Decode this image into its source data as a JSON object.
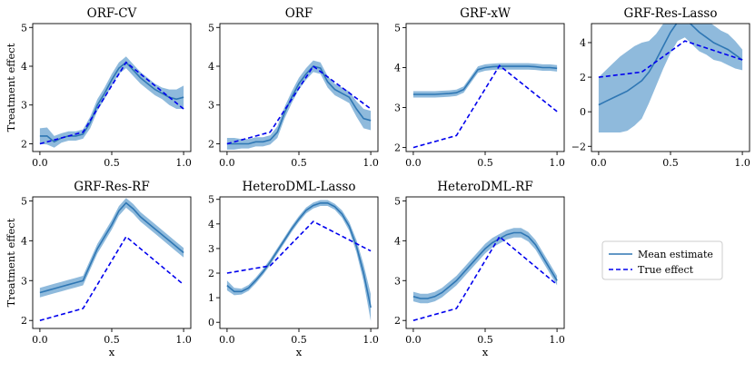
{
  "colors": {
    "band": "#8fbadc",
    "mean": "#2f77b4",
    "truth": "#0000ee",
    "axis": "#000000",
    "legend_border": "#cccccc"
  },
  "legend": {
    "mean_label": "Mean estimate",
    "true_label": "True effect",
    "placement": "lower-right-empty-slot"
  },
  "chart_data": [
    {
      "type": "line",
      "title": "ORF-CV",
      "ylabel": "Treatment effect",
      "xlabel": "",
      "xlim": [
        -0.05,
        1.05
      ],
      "ylim": [
        1.8,
        5.1
      ],
      "xticks": [
        0.0,
        0.5,
        1.0
      ],
      "xtick_labels": [
        "0.0",
        "0.5",
        "1.0"
      ],
      "yticks": [
        2,
        3,
        4,
        5
      ],
      "ytick_labels": [
        "2",
        "3",
        "4",
        "5"
      ],
      "true_effect": {
        "x": [
          0,
          0.3,
          0.6,
          1.0
        ],
        "y": [
          2.0,
          2.3,
          4.1,
          2.9
        ]
      },
      "mean_estimate": {
        "x": [
          0,
          0.05,
          0.1,
          0.15,
          0.2,
          0.25,
          0.3,
          0.35,
          0.4,
          0.45,
          0.5,
          0.55,
          0.6,
          0.65,
          0.7,
          0.75,
          0.8,
          0.85,
          0.9,
          0.95,
          1.0
        ],
        "y": [
          2.2,
          2.2,
          2.05,
          2.15,
          2.2,
          2.2,
          2.25,
          2.55,
          3.0,
          3.3,
          3.65,
          3.95,
          4.1,
          3.9,
          3.7,
          3.55,
          3.4,
          3.3,
          3.2,
          3.15,
          3.2
        ],
        "band": [
          0.2,
          0.22,
          0.15,
          0.12,
          0.12,
          0.12,
          0.12,
          0.15,
          0.15,
          0.15,
          0.15,
          0.15,
          0.15,
          0.15,
          0.15,
          0.15,
          0.15,
          0.15,
          0.2,
          0.25,
          0.3
        ]
      }
    },
    {
      "type": "line",
      "title": "ORF",
      "ylabel": "",
      "xlabel": "",
      "xlim": [
        -0.05,
        1.05
      ],
      "ylim": [
        1.8,
        5.1
      ],
      "xticks": [
        0.0,
        0.5,
        1.0
      ],
      "xtick_labels": [
        "0.0",
        "0.5",
        "1.0"
      ],
      "yticks": [
        2,
        3,
        4,
        5
      ],
      "ytick_labels": [
        "2",
        "3",
        "4",
        "5"
      ],
      "true_effect": {
        "x": [
          0,
          0.3,
          0.6,
          1.0
        ],
        "y": [
          2.0,
          2.3,
          4.0,
          2.9
        ]
      },
      "mean_estimate": {
        "x": [
          0,
          0.05,
          0.1,
          0.15,
          0.2,
          0.25,
          0.3,
          0.35,
          0.4,
          0.45,
          0.5,
          0.55,
          0.6,
          0.65,
          0.7,
          0.75,
          0.8,
          0.85,
          0.9,
          0.95,
          1.0
        ],
        "y": [
          2.0,
          2.0,
          2.0,
          2.0,
          2.05,
          2.05,
          2.1,
          2.3,
          2.8,
          3.2,
          3.55,
          3.8,
          4.0,
          3.95,
          3.6,
          3.4,
          3.3,
          3.2,
          2.9,
          2.65,
          2.6
        ],
        "band": [
          0.15,
          0.15,
          0.12,
          0.12,
          0.12,
          0.12,
          0.12,
          0.15,
          0.15,
          0.15,
          0.15,
          0.15,
          0.15,
          0.15,
          0.15,
          0.15,
          0.15,
          0.15,
          0.2,
          0.25,
          0.25
        ]
      }
    },
    {
      "type": "line",
      "title": "GRF-xW",
      "ylabel": "",
      "xlabel": "",
      "xlim": [
        -0.05,
        1.05
      ],
      "ylim": [
        1.9,
        5.1
      ],
      "xticks": [
        0.0,
        0.5,
        1.0
      ],
      "xtick_labels": [
        "0.0",
        "0.5",
        "1.0"
      ],
      "yticks": [
        2,
        3,
        4,
        5
      ],
      "ytick_labels": [
        "2",
        "3",
        "4",
        "5"
      ],
      "true_effect": {
        "x": [
          0,
          0.3,
          0.6,
          1.0
        ],
        "y": [
          2.0,
          2.3,
          4.05,
          2.9
        ]
      },
      "mean_estimate": {
        "x": [
          0,
          0.05,
          0.1,
          0.15,
          0.2,
          0.25,
          0.3,
          0.35,
          0.4,
          0.45,
          0.5,
          0.55,
          0.6,
          0.65,
          0.7,
          0.75,
          0.8,
          0.85,
          0.9,
          0.95,
          1.0
        ],
        "y": [
          3.33,
          3.33,
          3.33,
          3.33,
          3.34,
          3.35,
          3.37,
          3.45,
          3.7,
          3.95,
          4.0,
          4.02,
          4.03,
          4.03,
          4.03,
          4.03,
          4.03,
          4.02,
          4.0,
          4.0,
          3.98
        ],
        "band": [
          0.08,
          0.08,
          0.08,
          0.08,
          0.08,
          0.08,
          0.08,
          0.08,
          0.08,
          0.08,
          0.08,
          0.08,
          0.08,
          0.08,
          0.08,
          0.08,
          0.08,
          0.08,
          0.08,
          0.08,
          0.08
        ]
      }
    },
    {
      "type": "line",
      "title": "GRF-Res-Lasso",
      "ylabel": "",
      "xlabel": "",
      "xlim": [
        -0.05,
        1.05
      ],
      "ylim": [
        -2.3,
        5.1
      ],
      "xticks": [
        0.0,
        0.5,
        1.0
      ],
      "xtick_labels": [
        "0.0",
        "0.5",
        "1.0"
      ],
      "yticks": [
        -2,
        0,
        2,
        4
      ],
      "ytick_labels": [
        "−2",
        "0",
        "2",
        "4"
      ],
      "true_effect": {
        "x": [
          0,
          0.3,
          0.6,
          1.0
        ],
        "y": [
          2.0,
          2.3,
          4.1,
          3.0
        ]
      },
      "mean_estimate": {
        "x": [
          0,
          0.05,
          0.1,
          0.15,
          0.2,
          0.25,
          0.3,
          0.35,
          0.4,
          0.45,
          0.5,
          0.55,
          0.6,
          0.65,
          0.7,
          0.75,
          0.8,
          0.85,
          0.9,
          0.95,
          1.0
        ],
        "y": [
          0.4,
          0.6,
          0.8,
          1.0,
          1.2,
          1.5,
          1.8,
          2.3,
          3.0,
          3.8,
          4.6,
          5.2,
          5.4,
          5.0,
          4.6,
          4.3,
          4.0,
          3.8,
          3.6,
          3.3,
          3.0
        ],
        "band": [
          1.6,
          1.8,
          2.0,
          2.2,
          2.3,
          2.3,
          2.2,
          1.8,
          1.5,
          1.3,
          1.2,
          1.1,
          1.1,
          1.1,
          1.1,
          1.0,
          1.0,
          0.9,
          0.9,
          0.8,
          0.6
        ]
      }
    },
    {
      "type": "line",
      "title": "GRF-Res-RF",
      "ylabel": "Treatment effect",
      "xlabel": "x",
      "xlim": [
        -0.05,
        1.05
      ],
      "ylim": [
        1.8,
        5.1
      ],
      "xticks": [
        0.0,
        0.5,
        1.0
      ],
      "xtick_labels": [
        "0.0",
        "0.5",
        "1.0"
      ],
      "yticks": [
        2,
        3,
        4,
        5
      ],
      "ytick_labels": [
        "2",
        "3",
        "4",
        "5"
      ],
      "true_effect": {
        "x": [
          0,
          0.3,
          0.6,
          1.0
        ],
        "y": [
          2.0,
          2.3,
          4.1,
          2.9
        ]
      },
      "mean_estimate": {
        "x": [
          0,
          0.05,
          0.1,
          0.15,
          0.2,
          0.25,
          0.3,
          0.35,
          0.4,
          0.45,
          0.5,
          0.55,
          0.6,
          0.65,
          0.7,
          0.75,
          0.8,
          0.85,
          0.9,
          0.95,
          1.0
        ],
        "y": [
          2.7,
          2.75,
          2.8,
          2.85,
          2.9,
          2.95,
          3.0,
          3.4,
          3.8,
          4.1,
          4.4,
          4.75,
          4.95,
          4.8,
          4.6,
          4.45,
          4.3,
          4.15,
          4.0,
          3.85,
          3.7
        ],
        "band": [
          0.12,
          0.12,
          0.12,
          0.12,
          0.12,
          0.12,
          0.12,
          0.12,
          0.12,
          0.12,
          0.12,
          0.12,
          0.12,
          0.12,
          0.12,
          0.12,
          0.12,
          0.12,
          0.12,
          0.12,
          0.12
        ]
      }
    },
    {
      "type": "line",
      "title": "HeteroDML-Lasso",
      "ylabel": "",
      "xlabel": "x",
      "xlim": [
        -0.05,
        1.05
      ],
      "ylim": [
        -0.25,
        5.1
      ],
      "xticks": [
        0.0,
        0.5,
        1.0
      ],
      "xtick_labels": [
        "0.0",
        "0.5",
        "1.0"
      ],
      "yticks": [
        0,
        1,
        2,
        3,
        4,
        5
      ],
      "ytick_labels": [
        "0",
        "1",
        "2",
        "3",
        "4",
        "5"
      ],
      "true_effect": {
        "x": [
          0,
          0.3,
          0.6,
          1.0
        ],
        "y": [
          2.0,
          2.3,
          4.1,
          2.9
        ]
      },
      "mean_estimate": {
        "x": [
          0,
          0.05,
          0.1,
          0.15,
          0.2,
          0.25,
          0.3,
          0.35,
          0.4,
          0.45,
          0.5,
          0.55,
          0.6,
          0.65,
          0.7,
          0.75,
          0.8,
          0.85,
          0.9,
          0.95,
          1.0
        ],
        "y": [
          1.5,
          1.25,
          1.25,
          1.4,
          1.7,
          2.05,
          2.45,
          2.9,
          3.35,
          3.8,
          4.2,
          4.55,
          4.75,
          4.85,
          4.85,
          4.7,
          4.4,
          3.9,
          3.1,
          2.0,
          0.6
        ],
        "band": [
          0.2,
          0.15,
          0.12,
          0.12,
          0.12,
          0.12,
          0.12,
          0.12,
          0.12,
          0.12,
          0.12,
          0.12,
          0.12,
          0.12,
          0.12,
          0.12,
          0.15,
          0.18,
          0.25,
          0.35,
          0.55
        ]
      }
    },
    {
      "type": "line",
      "title": "HeteroDML-RF",
      "ylabel": "",
      "xlabel": "x",
      "xlim": [
        -0.05,
        1.05
      ],
      "ylim": [
        1.8,
        5.1
      ],
      "xticks": [
        0.0,
        0.5,
        1.0
      ],
      "xtick_labels": [
        "0.0",
        "0.5",
        "1.0"
      ],
      "yticks": [
        2,
        3,
        4,
        5
      ],
      "ytick_labels": [
        "2",
        "3",
        "4",
        "5"
      ],
      "true_effect": {
        "x": [
          0,
          0.3,
          0.6,
          1.0
        ],
        "y": [
          2.0,
          2.3,
          4.1,
          2.9
        ]
      },
      "mean_estimate": {
        "x": [
          0,
          0.05,
          0.1,
          0.15,
          0.2,
          0.25,
          0.3,
          0.35,
          0.4,
          0.45,
          0.5,
          0.55,
          0.6,
          0.65,
          0.7,
          0.75,
          0.8,
          0.85,
          0.9,
          0.95,
          1.0
        ],
        "y": [
          2.6,
          2.55,
          2.55,
          2.6,
          2.7,
          2.85,
          3.0,
          3.2,
          3.4,
          3.6,
          3.8,
          3.95,
          4.05,
          4.15,
          4.2,
          4.2,
          4.1,
          3.9,
          3.6,
          3.3,
          3.0
        ],
        "band": [
          0.12,
          0.12,
          0.12,
          0.12,
          0.12,
          0.12,
          0.12,
          0.12,
          0.12,
          0.12,
          0.12,
          0.12,
          0.12,
          0.12,
          0.12,
          0.12,
          0.12,
          0.12,
          0.12,
          0.12,
          0.12
        ]
      }
    }
  ]
}
